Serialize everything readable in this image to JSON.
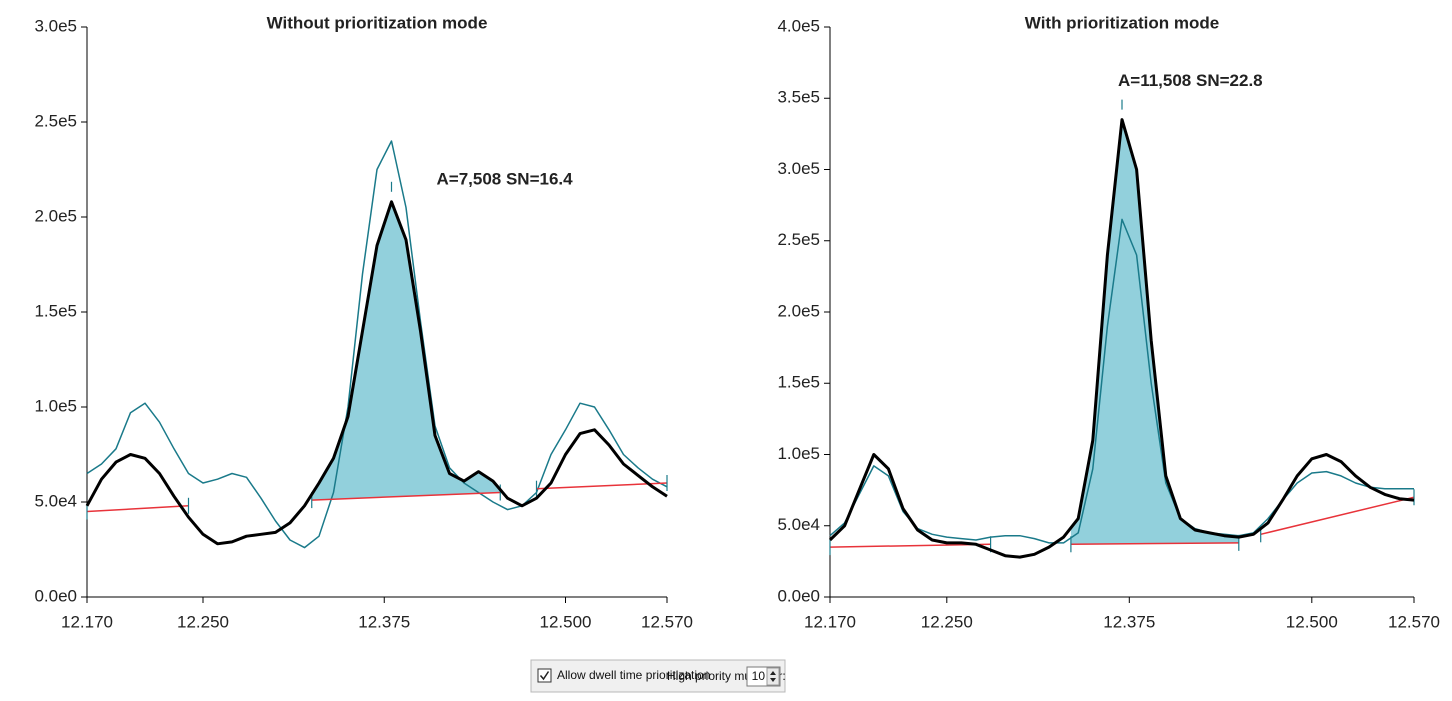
{
  "chart_data": [
    {
      "type": "line",
      "title": "Without prioritization mode",
      "annotation": "A=7,508 SN=16.4",
      "xlim": [
        12.17,
        12.57
      ],
      "xticks": [
        {
          "value": 12.17,
          "label": "12.170"
        },
        {
          "value": 12.25,
          "label": "12.250"
        },
        {
          "value": 12.375,
          "label": "12.375"
        },
        {
          "value": 12.5,
          "label": "12.500"
        },
        {
          "value": 12.57,
          "label": "12.570"
        }
      ],
      "ylim": [
        0,
        300000
      ],
      "yticks": [
        {
          "value": 0,
          "label": "0.0e0"
        },
        {
          "value": 50000,
          "label": "5.0e4"
        },
        {
          "value": 100000,
          "label": "1.0e5"
        },
        {
          "value": 150000,
          "label": "1.5e5"
        },
        {
          "value": 200000,
          "label": "2.0e5"
        },
        {
          "value": 250000,
          "label": "2.5e5"
        },
        {
          "value": 300000,
          "label": "3.0e5"
        }
      ],
      "x": [
        12.17,
        12.18,
        12.19,
        12.2,
        12.21,
        12.22,
        12.23,
        12.24,
        12.25,
        12.26,
        12.27,
        12.28,
        12.29,
        12.3,
        12.31,
        12.32,
        12.33,
        12.34,
        12.35,
        12.36,
        12.37,
        12.38,
        12.39,
        12.4,
        12.41,
        12.42,
        12.43,
        12.44,
        12.45,
        12.46,
        12.47,
        12.48,
        12.49,
        12.5,
        12.51,
        12.52,
        12.53,
        12.54,
        12.55,
        12.56,
        12.57
      ],
      "series": [
        {
          "color": "#000000",
          "values": [
            48000,
            62000,
            71000,
            75000,
            73000,
            65000,
            53000,
            42000,
            33000,
            28000,
            29000,
            32000,
            33000,
            34000,
            39000,
            48000,
            60000,
            73000,
            95000,
            140000,
            185000,
            208000,
            188000,
            140000,
            85000,
            65000,
            61000,
            66000,
            61000,
            52000,
            48000,
            52000,
            60000,
            75000,
            86000,
            88000,
            80000,
            70000,
            64000,
            58000,
            53000
          ]
        },
        {
          "color": "#1a7a8a",
          "values": [
            65000,
            70000,
            78000,
            97000,
            102000,
            92000,
            78000,
            65000,
            60000,
            62000,
            65000,
            63000,
            52000,
            40000,
            30000,
            26000,
            32000,
            55000,
            100000,
            170000,
            225000,
            240000,
            205000,
            145000,
            90000,
            68000,
            60000,
            55000,
            50000,
            46000,
            48000,
            55000,
            75000,
            88000,
            102000,
            100000,
            88000,
            75000,
            68000,
            62000,
            58000
          ]
        }
      ],
      "baselines": [
        {
          "color": "#e8333a",
          "x": [
            12.17,
            12.24
          ],
          "values": [
            45000,
            48000
          ]
        },
        {
          "color": "#e8333a",
          "fill": "#92d0dc",
          "x": [
            12.325,
            12.455
          ],
          "values": [
            51000,
            55000
          ]
        },
        {
          "color": "#e8333a",
          "x": [
            12.48,
            12.57
          ],
          "values": [
            57000,
            60000
          ]
        }
      ]
    },
    {
      "type": "line",
      "title": "With prioritization mode",
      "annotation": "A=11,508 SN=22.8",
      "xlim": [
        12.17,
        12.57
      ],
      "xticks": [
        {
          "value": 12.17,
          "label": "12.170"
        },
        {
          "value": 12.25,
          "label": "12.250"
        },
        {
          "value": 12.375,
          "label": "12.375"
        },
        {
          "value": 12.5,
          "label": "12.500"
        },
        {
          "value": 12.57,
          "label": "12.570"
        }
      ],
      "ylim": [
        0,
        400000
      ],
      "yticks": [
        {
          "value": 0,
          "label": "0.0e0"
        },
        {
          "value": 50000,
          "label": "5.0e4"
        },
        {
          "value": 100000,
          "label": "1.0e5"
        },
        {
          "value": 150000,
          "label": "1.5e5"
        },
        {
          "value": 200000,
          "label": "2.0e5"
        },
        {
          "value": 250000,
          "label": "2.5e5"
        },
        {
          "value": 300000,
          "label": "3.0e5"
        },
        {
          "value": 350000,
          "label": "3.5e5"
        },
        {
          "value": 400000,
          "label": "4.0e5"
        }
      ],
      "x": [
        12.17,
        12.18,
        12.19,
        12.2,
        12.21,
        12.22,
        12.23,
        12.24,
        12.25,
        12.26,
        12.27,
        12.28,
        12.29,
        12.3,
        12.31,
        12.32,
        12.33,
        12.34,
        12.35,
        12.36,
        12.37,
        12.38,
        12.39,
        12.4,
        12.41,
        12.42,
        12.43,
        12.44,
        12.45,
        12.46,
        12.47,
        12.48,
        12.49,
        12.5,
        12.51,
        12.52,
        12.53,
        12.54,
        12.55,
        12.56,
        12.57
      ],
      "series": [
        {
          "color": "#000000",
          "values": [
            40000,
            50000,
            75000,
            100000,
            90000,
            62000,
            47000,
            40000,
            38000,
            38000,
            37000,
            33000,
            29000,
            28000,
            30000,
            35000,
            42000,
            55000,
            110000,
            240000,
            335000,
            300000,
            180000,
            85000,
            55000,
            47000,
            45000,
            43000,
            42000,
            44000,
            52000,
            68000,
            85000,
            97000,
            100000,
            95000,
            85000,
            77000,
            72000,
            69000,
            68000
          ]
        },
        {
          "color": "#1a7a8a",
          "values": [
            43000,
            52000,
            72000,
            92000,
            85000,
            60000,
            48000,
            44000,
            42000,
            41000,
            40000,
            42000,
            43000,
            43000,
            41000,
            38000,
            38000,
            45000,
            90000,
            190000,
            265000,
            240000,
            150000,
            80000,
            55000,
            48000,
            45000,
            44000,
            43000,
            45000,
            55000,
            68000,
            80000,
            87000,
            88000,
            85000,
            80000,
            77000,
            76000,
            76000,
            76000
          ]
        }
      ],
      "baselines": [
        {
          "color": "#e8333a",
          "x": [
            12.17,
            12.28
          ],
          "values": [
            35000,
            37000
          ]
        },
        {
          "color": "#e8333a",
          "fill": "#92d0dc",
          "x": [
            12.335,
            12.45
          ],
          "values": [
            37000,
            38000
          ]
        },
        {
          "color": "#e8333a",
          "x": [
            12.465,
            12.57
          ],
          "values": [
            44000,
            70000
          ]
        }
      ]
    }
  ],
  "controls": {
    "checkbox_label": "Allow dwell time prioritization",
    "multiplier_label": "High priority multiplier:",
    "multiplier_value": 10
  }
}
